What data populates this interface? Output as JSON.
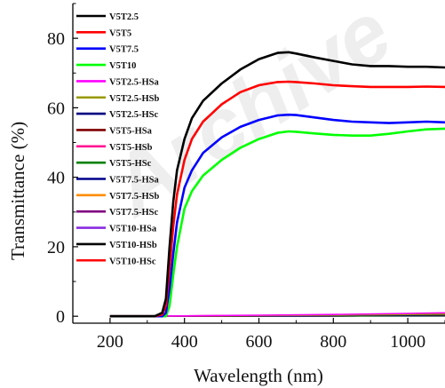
{
  "chart_data": {
    "type": "line",
    "xlabel": "Wavelength (nm)",
    "ylabel": "Transmittance (%)",
    "xlim": [
      100,
      1100
    ],
    "ylim": [
      -2,
      90
    ],
    "x_ticks": [
      200,
      400,
      600,
      800,
      1000
    ],
    "y_ticks": [
      0,
      20,
      40,
      60,
      80
    ],
    "grid": false,
    "legend_placement": "top-left",
    "watermark": "Archive",
    "series": [
      {
        "name": "V5T2.5",
        "color": "#000000",
        "x": [
          200,
          320,
          340,
          350,
          360,
          370,
          380,
          400,
          420,
          450,
          500,
          550,
          600,
          650,
          680,
          700,
          750,
          800,
          850,
          900,
          950,
          1000,
          1050,
          1100
        ],
        "y": [
          0,
          0,
          1,
          5,
          20,
          33,
          42,
          51,
          57,
          62,
          67,
          71,
          74,
          75.8,
          76,
          75.6,
          74.5,
          73.5,
          72.5,
          72,
          72,
          71.8,
          71.8,
          71.6
        ]
      },
      {
        "name": "V5T5",
        "color": "#ff0000",
        "x": [
          200,
          320,
          340,
          350,
          360,
          370,
          380,
          400,
          420,
          450,
          500,
          550,
          600,
          650,
          680,
          700,
          750,
          800,
          850,
          900,
          950,
          1000,
          1050,
          1100
        ],
        "y": [
          0,
          0,
          0.5,
          3,
          14,
          26,
          35,
          45,
          51,
          56,
          61,
          64.5,
          66.5,
          67.4,
          67.5,
          67.4,
          67,
          66.5,
          66.2,
          66,
          66,
          66,
          66.1,
          66
        ]
      },
      {
        "name": "V5T7.5",
        "color": "#0000ff",
        "x": [
          200,
          340,
          350,
          360,
          370,
          380,
          400,
          420,
          450,
          500,
          550,
          600,
          650,
          680,
          700,
          750,
          800,
          850,
          900,
          950,
          1000,
          1050,
          1100
        ],
        "y": [
          0,
          0,
          1,
          8,
          18,
          27,
          37,
          42,
          47,
          51.5,
          54.5,
          56.5,
          57.8,
          58,
          57.9,
          57.2,
          56.5,
          56,
          55.8,
          55.6,
          55.8,
          56,
          55.8
        ]
      },
      {
        "name": "V5T10",
        "color": "#00ff00",
        "x": [
          200,
          350,
          360,
          370,
          380,
          400,
          420,
          450,
          500,
          550,
          600,
          650,
          680,
          700,
          750,
          800,
          850,
          900,
          950,
          1000,
          1050,
          1100
        ],
        "y": [
          0,
          0,
          3,
          12,
          20,
          31,
          36,
          40.5,
          45,
          48.5,
          51,
          52.8,
          53.2,
          53.1,
          52.6,
          52.2,
          52,
          52,
          52.5,
          53.2,
          53.8,
          54
        ]
      },
      {
        "name": "V5T2.5-HSa",
        "color": "#ff00ff",
        "x": [
          200,
          400,
          600,
          800,
          1000,
          1100
        ],
        "y": [
          0,
          0.1,
          0.3,
          0.5,
          0.8,
          1
        ]
      },
      {
        "name": "V5T2.5-HSb",
        "color": "#999900",
        "x": [
          200,
          400,
          600,
          800,
          1000,
          1100
        ],
        "y": [
          0,
          0.05,
          0.2,
          0.3,
          0.5,
          0.6
        ]
      },
      {
        "name": "V5T2.5-HSc",
        "color": "#000080",
        "x": [
          200,
          400,
          600,
          800,
          1000,
          1100
        ],
        "y": [
          0,
          0.05,
          0.1,
          0.2,
          0.3,
          0.4
        ]
      },
      {
        "name": "V5T5-HSa",
        "color": "#800000",
        "x": [
          200,
          400,
          600,
          800,
          1000,
          1100
        ],
        "y": [
          0,
          0,
          0.1,
          0.2,
          0.3,
          0.3
        ]
      },
      {
        "name": "V5T5-HSb",
        "color": "#ff1493",
        "x": [
          200,
          400,
          600,
          800,
          1000,
          1100
        ],
        "y": [
          0,
          0.1,
          0.2,
          0.4,
          0.6,
          0.7
        ]
      },
      {
        "name": "V5T5-HSc",
        "color": "#008000",
        "x": [
          200,
          400,
          600,
          800,
          1000,
          1100
        ],
        "y": [
          0,
          0,
          0.1,
          0.1,
          0.2,
          0.2
        ]
      },
      {
        "name": "V5T7.5-HSa",
        "color": "#00008b",
        "x": [
          200,
          400,
          600,
          800,
          1000,
          1100
        ],
        "y": [
          0,
          0,
          0.1,
          0.1,
          0.2,
          0.2
        ]
      },
      {
        "name": "V5T7.5-HSb",
        "color": "#ff8c00",
        "x": [
          200,
          400,
          600,
          800,
          1000,
          1100
        ],
        "y": [
          0,
          0,
          0.1,
          0.2,
          0.3,
          0.3
        ]
      },
      {
        "name": "V5T7.5-HSc",
        "color": "#800080",
        "x": [
          200,
          400,
          600,
          800,
          1000,
          1100
        ],
        "y": [
          0,
          0,
          0.1,
          0.1,
          0.2,
          0.2
        ]
      },
      {
        "name": "V5T10-HSa",
        "color": "#8a2be2",
        "x": [
          200,
          400,
          600,
          800,
          1000,
          1100
        ],
        "y": [
          0,
          0,
          0.1,
          0.1,
          0.2,
          0.2
        ]
      },
      {
        "name": "V5T10-HSb",
        "color": "#000000",
        "x": [
          200,
          400,
          600,
          800,
          1000,
          1100
        ],
        "y": [
          0,
          0,
          0.05,
          0.1,
          0.1,
          0.1
        ]
      },
      {
        "name": "V5T10-HSc",
        "color": "#ff0000",
        "x": [
          200,
          400,
          600,
          800,
          1000,
          1100
        ],
        "y": [
          0,
          0.1,
          0.2,
          0.3,
          0.5,
          0.6
        ]
      }
    ]
  }
}
